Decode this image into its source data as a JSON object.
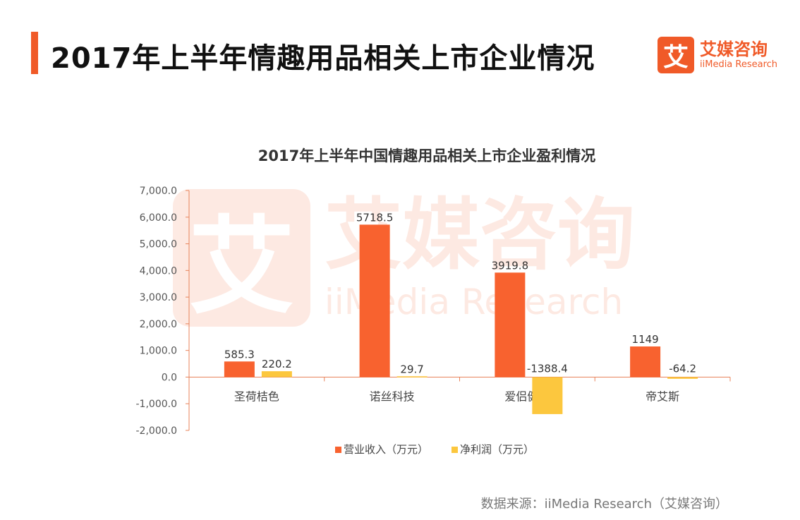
{
  "header": {
    "title": "2017年上半年情趣用品相关上市企业情况"
  },
  "logo": {
    "icon_char": "艾",
    "name_cn": "艾媒咨询",
    "name_en": "iiMedia Research"
  },
  "watermark": {
    "icon_char": "艾",
    "name_cn": "艾媒咨询",
    "name_en": "iiMedia Research"
  },
  "colors": {
    "accent": "#f05a28",
    "revenue": "#f8622f",
    "profit": "#fcc73e",
    "axis": "#e8835a"
  },
  "chart_data": {
    "type": "bar",
    "title": "2017年上半年中国情趣用品相关上市企业盈利情况",
    "categories": [
      "圣荷桔色",
      "诺丝科技",
      "爱侣健康",
      "帝艾斯"
    ],
    "series": [
      {
        "name": "营业收入（万元）",
        "values": [
          585.3,
          5718.5,
          3919.8,
          1149
        ],
        "labels": [
          "585.3",
          "5718.5",
          "3919.8",
          "1149"
        ]
      },
      {
        "name": "净利润（万元）",
        "values": [
          220.2,
          29.7,
          -1388.4,
          -64.2
        ],
        "labels": [
          "220.2",
          "29.7",
          "-1388.4",
          "-64.2"
        ]
      }
    ],
    "ylim": [
      -2000,
      7000
    ],
    "yticks": [
      -2000,
      -1000,
      0,
      1000,
      2000,
      3000,
      4000,
      5000,
      6000,
      7000
    ],
    "ytick_labels": [
      "-2,000.0",
      "-1,000.0",
      "0.0",
      "1,000.0",
      "2,000.0",
      "3,000.0",
      "4,000.0",
      "5,000.0",
      "6,000.0",
      "7,000.0"
    ],
    "legend_position": "bottom",
    "grid": false
  },
  "footer": {
    "source": "数据来源：iiMedia Research（艾媒咨询）"
  }
}
